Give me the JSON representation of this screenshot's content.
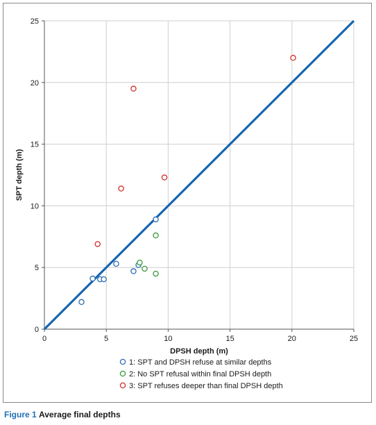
{
  "chart_data": {
    "type": "scatter",
    "xlabel": "DPSH depth (m)",
    "ylabel": "SPT depth (m)",
    "xlim": [
      0,
      25
    ],
    "ylim": [
      0,
      25
    ],
    "xticks": [
      "0",
      "5",
      "10",
      "15",
      "20",
      "25"
    ],
    "yticks": [
      "0",
      "5",
      "10",
      "15",
      "20",
      "25"
    ],
    "grid": true,
    "legend_position": "bottom-center",
    "reference_line": {
      "type": "1:1",
      "color": "#1565b0"
    },
    "series": [
      {
        "name": "1: SPT and DPSH refuse at similar depths",
        "color": "#2a6db5",
        "points": [
          [
            3.0,
            2.2
          ],
          [
            3.9,
            4.1
          ],
          [
            4.5,
            4.05
          ],
          [
            4.8,
            4.05
          ],
          [
            5.8,
            5.3
          ],
          [
            7.2,
            4.7
          ],
          [
            7.6,
            5.2
          ],
          [
            9.0,
            8.9
          ]
        ]
      },
      {
        "name": "2: No SPT refusal within final DPSH depth",
        "color": "#3a9a3a",
        "points": [
          [
            7.7,
            5.4
          ],
          [
            8.1,
            4.9
          ],
          [
            9.0,
            4.5
          ],
          [
            9.0,
            7.6
          ]
        ]
      },
      {
        "name": "3: SPT refuses deeper than final DPSH depth",
        "color": "#d32f2f",
        "points": [
          [
            4.3,
            6.9
          ],
          [
            6.2,
            11.4
          ],
          [
            7.2,
            19.5
          ],
          [
            9.7,
            12.3
          ],
          [
            20.1,
            22.0
          ]
        ]
      }
    ]
  },
  "caption": {
    "label": "Figure 1",
    "text": "Average final depths"
  }
}
